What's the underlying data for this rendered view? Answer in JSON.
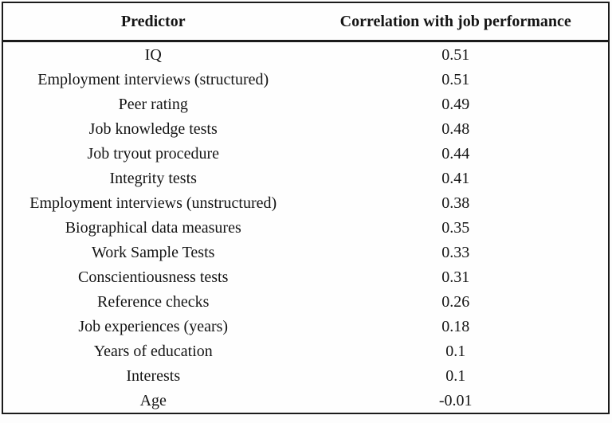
{
  "header": {
    "predictor_label": "Predictor",
    "correlation_label": "Correlation with job performance"
  },
  "rows": [
    {
      "predictor": "IQ",
      "correlation": "0.51"
    },
    {
      "predictor": "Employment interviews (structured)",
      "correlation": "0.51"
    },
    {
      "predictor": "Peer rating",
      "correlation": "0.49"
    },
    {
      "predictor": "Job knowledge tests",
      "correlation": "0.48"
    },
    {
      "predictor": "Job tryout procedure",
      "correlation": "0.44"
    },
    {
      "predictor": "Integrity tests",
      "correlation": "0.41"
    },
    {
      "predictor": "Employment interviews (unstructured)",
      "correlation": "0.38"
    },
    {
      "predictor": "Biographical data measures",
      "correlation": "0.35"
    },
    {
      "predictor": "Work Sample Tests",
      "correlation": "0.33"
    },
    {
      "predictor": "Conscientiousness tests",
      "correlation": "0.31"
    },
    {
      "predictor": "Reference checks",
      "correlation": "0.26"
    },
    {
      "predictor": "Job experiences (years)",
      "correlation": "0.18"
    },
    {
      "predictor": "Years of education",
      "correlation": "0.1"
    },
    {
      "predictor": "Interests",
      "correlation": "0.1"
    },
    {
      "predictor": "Age",
      "correlation": "-0.01"
    }
  ],
  "colors": {
    "border": "#1b1b1b",
    "text": "#151515",
    "background": "#fdfdfd"
  },
  "chart_data": {
    "type": "table",
    "columns": [
      "Predictor",
      "Correlation with job performance"
    ],
    "categories": [
      "IQ",
      "Employment interviews (structured)",
      "Peer rating",
      "Job knowledge tests",
      "Job tryout procedure",
      "Integrity tests",
      "Employment interviews (unstructured)",
      "Biographical data measures",
      "Work Sample Tests",
      "Conscientiousness tests",
      "Reference checks",
      "Job experiences (years)",
      "Years of education",
      "Interests",
      "Age"
    ],
    "values": [
      0.51,
      0.51,
      0.49,
      0.48,
      0.44,
      0.41,
      0.38,
      0.35,
      0.33,
      0.31,
      0.26,
      0.18,
      0.1,
      0.1,
      -0.01
    ]
  }
}
